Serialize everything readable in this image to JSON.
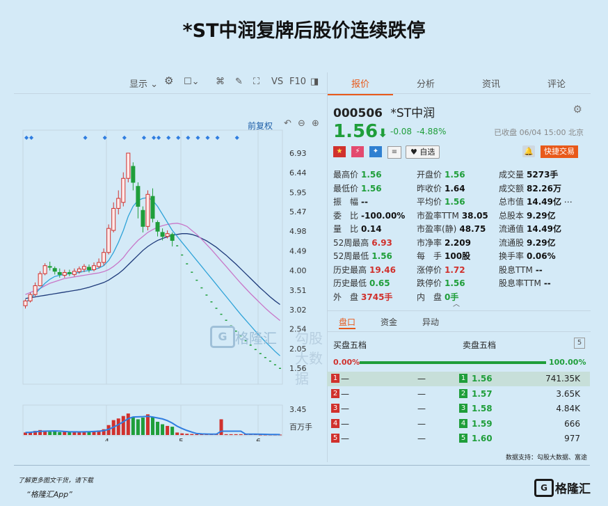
{
  "title": "*ST中润复牌后股价连续跌停",
  "toolbar": {
    "display": "显示",
    "vs": "VS",
    "f10": "F10",
    "fq": "前复权"
  },
  "tabs": [
    "报价",
    "分析",
    "资讯",
    "评论"
  ],
  "stock": {
    "code": "000506",
    "name": "*ST中润",
    "price": "1.56",
    "arrow": "⬇",
    "change": "-0.08",
    "pct": "-4.88%",
    "status": "已收盘 06/04 15:00 北京",
    "fav": "自选",
    "trade": "快捷交易"
  },
  "quote": [
    [
      "最高价",
      "1.56",
      "g",
      "开盘价",
      "1.56",
      "g",
      "成交量",
      "5273手",
      "b"
    ],
    [
      "最低价",
      "1.56",
      "g",
      "昨收价",
      "1.64",
      "b",
      "成交额",
      "82.26万",
      "b"
    ],
    [
      "振　幅",
      "--",
      "b",
      "平均价",
      "1.56",
      "g",
      "总市值",
      "14.49亿",
      "b"
    ],
    [
      "委　比",
      "-100.00%",
      "b",
      "市盈率TTM",
      "38.05",
      "b",
      "总股本",
      "9.29亿",
      "b"
    ],
    [
      "量　比",
      "0.14",
      "b",
      "市盈率(静)",
      "48.75",
      "b",
      "流通值",
      "14.49亿",
      "b"
    ],
    [
      "52周最高",
      "6.93",
      "r",
      "市净率",
      "2.209",
      "b",
      "流通股",
      "9.29亿",
      "b"
    ],
    [
      "52周最低",
      "1.56",
      "g",
      "每　手",
      "100股",
      "b",
      "换手率",
      "0.06%",
      "b"
    ],
    [
      "历史最高",
      "19.46",
      "r",
      "涨停价",
      "1.72",
      "r",
      "股息TTM",
      "--",
      "b"
    ],
    [
      "历史最低",
      "0.65",
      "g",
      "跌停价",
      "1.56",
      "g",
      "股息率TTM",
      "--",
      "b"
    ],
    [
      "外　盘",
      "3745手",
      "r",
      "内　盘",
      "0手",
      "g",
      "",
      "",
      "b"
    ]
  ],
  "subtabs": [
    "盘口",
    "资金",
    "异动"
  ],
  "orderbook": {
    "buy_label": "买盘五档",
    "sell_label": "卖盘五档",
    "count": "5",
    "buy_pct": "0.00%",
    "sell_pct": "100.00%",
    "buy_ratio": 0.0,
    "rows": [
      {
        "lv": "1",
        "bp": "—",
        "bv": "—",
        "sp": "1.56",
        "sv": "741.35K"
      },
      {
        "lv": "2",
        "bp": "—",
        "bv": "—",
        "sp": "1.57",
        "sv": "3.65K"
      },
      {
        "lv": "3",
        "bp": "—",
        "bv": "—",
        "sp": "1.58",
        "sv": "4.84K"
      },
      {
        "lv": "4",
        "bp": "—",
        "bv": "—",
        "sp": "1.59",
        "sv": "666"
      },
      {
        "lv": "5",
        "bp": "—",
        "bv": "—",
        "sp": "1.60",
        "sv": "977"
      }
    ]
  },
  "datasource": "数据支持：勾股大数据、富途",
  "watermark": {
    "brand": "格隆汇",
    "sub": "勾股大数据"
  },
  "footer": {
    "line1": "了解更多图文干货，请下载",
    "line2": "“格隆汇App”",
    "logo": "格隆汇"
  },
  "chart_data": {
    "type": "candlestick",
    "price_ticks": [
      "6.93",
      "6.44",
      "5.95",
      "5.47",
      "4.98",
      "4.49",
      "4.00",
      "3.51",
      "3.02",
      "2.54",
      "2.05",
      "1.56"
    ],
    "ylim": [
      1.56,
      6.93
    ],
    "x_ticks": [
      "4",
      "5",
      "6"
    ],
    "volume_ticks": [
      "3.45",
      "百万手"
    ],
    "candles": [
      [
        3.12,
        3.24,
        3.05,
        3.28
      ],
      [
        3.24,
        3.4,
        3.2,
        3.45
      ],
      [
        3.4,
        3.62,
        3.36,
        3.7
      ],
      [
        3.62,
        3.92,
        3.6,
        3.98
      ],
      [
        3.92,
        4.12,
        3.88,
        4.18
      ],
      [
        4.1,
        4.08,
        4.0,
        4.22
      ],
      [
        4.05,
        3.98,
        3.9,
        4.1
      ],
      [
        3.95,
        3.9,
        3.82,
        4.05
      ],
      [
        3.88,
        3.95,
        3.82,
        4.02
      ],
      [
        3.95,
        3.92,
        3.86,
        4.02
      ],
      [
        3.9,
        3.98,
        3.85,
        4.05
      ],
      [
        3.97,
        4.04,
        3.92,
        4.1
      ],
      [
        4.03,
        4.1,
        3.96,
        4.16
      ],
      [
        4.08,
        4.02,
        3.95,
        4.15
      ],
      [
        4.02,
        4.12,
        3.98,
        4.2
      ],
      [
        4.1,
        4.2,
        4.05,
        4.3
      ],
      [
        4.2,
        4.45,
        4.12,
        4.55
      ],
      [
        4.45,
        5.05,
        4.4,
        5.15
      ],
      [
        5.0,
        5.55,
        4.95,
        5.7
      ],
      [
        5.55,
        5.8,
        5.4,
        6.0
      ],
      [
        5.7,
        6.3,
        5.6,
        6.45
      ],
      [
        6.3,
        6.93,
        6.2,
        6.93
      ],
      [
        6.6,
        6.2,
        6.0,
        6.7
      ],
      [
        6.1,
        5.6,
        5.3,
        6.2
      ],
      [
        5.5,
        5.1,
        4.95,
        5.6
      ],
      [
        5.1,
        5.9,
        5.0,
        6.0
      ],
      [
        5.85,
        5.3,
        5.2,
        6.05
      ],
      [
        5.2,
        4.98,
        4.85,
        5.25
      ],
      [
        4.95,
        4.85,
        4.75,
        5.05
      ],
      [
        4.85,
        4.92,
        4.8,
        5.0
      ],
      [
        4.9,
        4.75,
        4.6,
        4.95
      ],
      [
        4.62,
        4.62,
        4.62,
        4.62
      ],
      [
        4.39,
        4.39,
        4.39,
        4.39
      ],
      [
        4.17,
        4.17,
        4.17,
        4.17
      ],
      [
        3.96,
        3.96,
        3.96,
        3.96
      ],
      [
        3.76,
        3.76,
        3.76,
        3.76
      ],
      [
        3.57,
        3.57,
        3.57,
        3.57
      ],
      [
        3.39,
        3.39,
        3.39,
        3.39
      ],
      [
        3.22,
        3.22,
        3.22,
        3.22
      ],
      [
        3.06,
        3.06,
        3.06,
        3.06
      ],
      [
        2.91,
        2.91,
        2.91,
        2.91
      ],
      [
        2.76,
        2.76,
        2.76,
        2.76
      ],
      [
        2.62,
        2.62,
        2.62,
        2.62
      ],
      [
        2.49,
        2.49,
        2.49,
        2.49
      ],
      [
        2.37,
        2.37,
        2.37,
        2.37
      ],
      [
        2.25,
        2.25,
        2.25,
        2.25
      ],
      [
        2.14,
        2.14,
        2.14,
        2.14
      ],
      [
        2.03,
        2.03,
        2.03,
        2.03
      ],
      [
        1.93,
        1.93,
        1.93,
        1.93
      ],
      [
        1.83,
        1.83,
        1.83,
        1.83
      ],
      [
        1.74,
        1.74,
        1.74,
        1.74
      ],
      [
        1.65,
        1.65,
        1.65,
        1.65
      ],
      [
        1.56,
        1.56,
        1.56,
        1.56
      ]
    ],
    "ma_blue": [
      3.2,
      3.3,
      3.42,
      3.55,
      3.68,
      3.78,
      3.85,
      3.88,
      3.9,
      3.92,
      3.93,
      3.95,
      3.98,
      4.0,
      4.02,
      4.06,
      4.12,
      4.25,
      4.45,
      4.7,
      5.0,
      5.35,
      5.6,
      5.75,
      5.8,
      5.82,
      5.75,
      5.6,
      5.4,
      5.2,
      5.0,
      4.85,
      4.7,
      4.55,
      4.4,
      4.25,
      4.1,
      3.95,
      3.8,
      3.65,
      3.5,
      3.35,
      3.2,
      3.05,
      2.9,
      2.76,
      2.62,
      2.48,
      2.35,
      2.22,
      2.1,
      1.98,
      1.87
    ],
    "ma_pink": [
      3.4,
      3.45,
      3.5,
      3.55,
      3.62,
      3.68,
      3.72,
      3.76,
      3.8,
      3.82,
      3.84,
      3.86,
      3.88,
      3.9,
      3.92,
      3.94,
      3.97,
      4.02,
      4.1,
      4.2,
      4.32,
      4.48,
      4.62,
      4.75,
      4.85,
      4.95,
      5.02,
      5.08,
      5.12,
      5.15,
      5.17,
      5.18,
      5.15,
      5.1,
      5.0,
      4.9,
      4.78,
      4.65,
      4.52,
      4.38,
      4.24,
      4.1,
      3.96,
      3.82,
      3.68,
      3.55,
      3.42,
      3.3,
      3.18,
      3.06,
      2.95,
      2.85,
      2.75
    ],
    "ma_navy": [
      3.3,
      3.32,
      3.34,
      3.36,
      3.38,
      3.4,
      3.42,
      3.44,
      3.46,
      3.48,
      3.5,
      3.52,
      3.55,
      3.58,
      3.62,
      3.66,
      3.7,
      3.76,
      3.84,
      3.92,
      4.02,
      4.14,
      4.26,
      4.38,
      4.5,
      4.6,
      4.68,
      4.75,
      4.8,
      4.84,
      4.88,
      4.9,
      4.92,
      4.92,
      4.9,
      4.86,
      4.8,
      4.74,
      4.66,
      4.58,
      4.48,
      4.38,
      4.27,
      4.16,
      4.04,
      3.92,
      3.8,
      3.68,
      3.56,
      3.45,
      3.34,
      3.24,
      3.15
    ],
    "volumes": [
      0.3,
      0.35,
      0.5,
      0.6,
      0.55,
      0.4,
      0.45,
      0.35,
      0.4,
      0.35,
      0.38,
      0.42,
      0.4,
      0.45,
      0.5,
      0.55,
      0.7,
      1.2,
      1.8,
      2.0,
      2.3,
      2.6,
      2.2,
      1.9,
      2.1,
      2.5,
      2.2,
      1.6,
      1.3,
      1.1,
      1.0,
      0.3,
      0.2,
      0.15,
      0.12,
      0.1,
      0.1,
      0.1,
      0.1,
      0.1,
      1.9,
      0.1,
      0.1,
      0.1,
      0.1,
      0.1,
      0.1,
      0.1,
      0.05,
      0.05,
      0.05,
      0.05,
      0.05
    ],
    "vol_max": 3.45
  }
}
